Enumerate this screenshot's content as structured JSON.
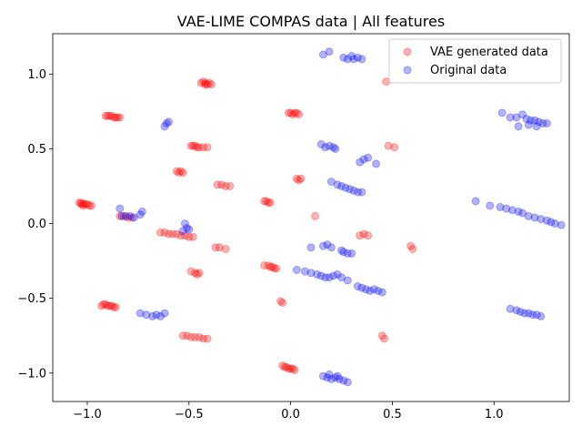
{
  "chart_data": {
    "type": "scatter",
    "title": "VAE-LIME COMPAS data | All features",
    "xlabel": "",
    "ylabel": "",
    "xlim": [
      -1.17,
      1.37
    ],
    "ylim": [
      -1.19,
      1.27
    ],
    "xticks": [
      -1.0,
      -0.5,
      0.0,
      0.5,
      1.0
    ],
    "xtick_labels": [
      "−1.0",
      "−0.5",
      "0.0",
      "0.5",
      "1.0"
    ],
    "yticks": [
      -1.0,
      -0.5,
      0.0,
      0.5,
      1.0
    ],
    "ytick_labels": [
      "−1.0",
      "−0.5",
      "0.0",
      "0.5",
      "1.0"
    ],
    "grid": false,
    "legend_position": "top-right",
    "series": [
      {
        "name": "VAE generated data",
        "color": "#ff0000",
        "alpha": 0.3,
        "x": [
          -0.42,
          -0.43,
          -0.41,
          -0.4,
          -0.44,
          -0.42,
          -0.39,
          -0.9,
          -0.88,
          -0.86,
          -0.85,
          -0.89,
          -0.87,
          -0.84,
          -0.91,
          -0.49,
          -0.47,
          -0.45,
          -0.43,
          -0.48,
          -0.46,
          -0.41,
          0.0,
          0.02,
          0.04,
          0.01,
          0.03,
          -0.01,
          0.48,
          0.51,
          -0.56,
          -0.54,
          -0.53,
          -0.55,
          0.03,
          0.05,
          0.04,
          -0.36,
          -0.34,
          -0.32,
          -0.3,
          -1.04,
          -1.03,
          -1.02,
          -1.01,
          -1.0,
          -1.02,
          -0.99,
          -0.98,
          -1.03,
          -0.84,
          -0.82,
          -0.8,
          -0.78,
          -0.13,
          -0.12,
          -0.11,
          -0.1,
          0.12,
          -0.64,
          -0.62,
          -0.6,
          -0.58,
          -0.56,
          -0.54,
          -0.52,
          -0.5,
          -0.48,
          0.34,
          0.36,
          0.38,
          -0.37,
          -0.35,
          -0.32,
          0.59,
          0.6,
          -0.13,
          -0.11,
          -0.1,
          -0.09,
          -0.08,
          -0.07,
          -0.49,
          -0.47,
          -0.46,
          -0.45,
          -0.05,
          -0.04,
          -0.92,
          -0.91,
          -0.9,
          -0.89,
          -0.88,
          -0.87,
          -0.86,
          -0.93,
          -0.53,
          -0.51,
          -0.49,
          -0.47,
          -0.45,
          -0.43,
          -0.41,
          0.45,
          0.46,
          -0.04,
          -0.03,
          -0.02,
          -0.01,
          0.0,
          0.01,
          0.02,
          0.47
        ],
        "y": [
          0.94,
          0.95,
          0.93,
          0.94,
          0.94,
          0.93,
          0.93,
          0.72,
          0.72,
          0.71,
          0.71,
          0.72,
          0.71,
          0.71,
          0.72,
          0.52,
          0.52,
          0.51,
          0.51,
          0.52,
          0.51,
          0.51,
          0.74,
          0.74,
          0.73,
          0.73,
          0.74,
          0.74,
          0.52,
          0.51,
          0.35,
          0.35,
          0.34,
          0.34,
          0.3,
          0.3,
          0.29,
          0.26,
          0.26,
          0.25,
          0.25,
          0.14,
          0.14,
          0.13,
          0.13,
          0.13,
          0.12,
          0.12,
          0.12,
          0.13,
          0.05,
          0.05,
          0.04,
          0.04,
          0.15,
          0.15,
          0.14,
          0.14,
          0.05,
          -0.06,
          -0.06,
          -0.07,
          -0.07,
          -0.07,
          -0.08,
          -0.08,
          -0.09,
          -0.09,
          -0.08,
          -0.07,
          -0.08,
          -0.16,
          -0.16,
          -0.17,
          -0.15,
          -0.17,
          -0.28,
          -0.28,
          -0.29,
          -0.29,
          -0.3,
          -0.3,
          -0.32,
          -0.33,
          -0.34,
          -0.33,
          -0.52,
          -0.53,
          -0.54,
          -0.54,
          -0.55,
          -0.55,
          -0.55,
          -0.56,
          -0.56,
          -0.55,
          -0.75,
          -0.75,
          -0.76,
          -0.76,
          -0.76,
          -0.77,
          -0.77,
          -0.75,
          -0.77,
          -0.95,
          -0.96,
          -0.96,
          -0.97,
          -0.97,
          -0.97,
          -0.98,
          0.95
        ]
      },
      {
        "name": "Original data",
        "color": "#0000ff",
        "alpha": 0.3,
        "x": [
          0.16,
          0.19,
          0.26,
          0.28,
          0.3,
          0.31,
          0.33,
          0.35,
          -0.61,
          -0.6,
          -0.62,
          1.04,
          1.08,
          1.11,
          1.14,
          1.16,
          1.18,
          1.2,
          1.22,
          1.24,
          1.26,
          1.12,
          1.17,
          1.21,
          0.15,
          0.17,
          0.19,
          0.21,
          0.22,
          0.34,
          0.36,
          0.38,
          0.42,
          0.2,
          0.23,
          0.25,
          0.27,
          0.29,
          0.31,
          0.33,
          0.35,
          -0.84,
          -0.83,
          -0.81,
          -0.79,
          -0.77,
          -0.74,
          -0.73,
          0.91,
          0.98,
          1.03,
          1.06,
          1.09,
          1.12,
          1.14,
          1.17,
          1.2,
          1.23,
          1.26,
          1.28,
          1.3,
          1.33,
          -0.52,
          -0.51,
          -0.53,
          -0.5,
          0.1,
          0.16,
          0.18,
          0.2,
          0.25,
          0.26,
          0.28,
          0.3,
          0.03,
          0.07,
          0.1,
          0.13,
          0.15,
          0.17,
          0.19,
          0.21,
          0.23,
          0.25,
          0.28,
          0.33,
          0.35,
          0.37,
          0.39,
          0.41,
          0.43,
          0.45,
          -0.74,
          -0.71,
          -0.68,
          -0.66,
          -0.64,
          -0.62,
          1.08,
          1.11,
          1.13,
          1.15,
          1.17,
          1.19,
          1.21,
          1.23,
          0.16,
          0.18,
          0.2,
          0.22,
          0.24,
          0.26,
          0.28,
          0.19,
          0.23
        ],
        "y": [
          1.13,
          1.15,
          1.11,
          1.1,
          1.12,
          1.1,
          1.11,
          1.1,
          0.67,
          0.68,
          0.65,
          0.74,
          0.71,
          0.71,
          0.73,
          0.7,
          0.69,
          0.69,
          0.68,
          0.67,
          0.67,
          0.65,
          0.66,
          0.65,
          0.53,
          0.51,
          0.52,
          0.51,
          0.5,
          0.41,
          0.43,
          0.44,
          0.4,
          0.28,
          0.26,
          0.25,
          0.24,
          0.23,
          0.22,
          0.21,
          0.21,
          0.1,
          0.05,
          0.05,
          0.05,
          0.04,
          0.06,
          0.08,
          0.15,
          0.12,
          0.11,
          0.1,
          0.09,
          0.08,
          0.07,
          0.05,
          0.04,
          0.03,
          0.02,
          0.01,
          0.0,
          -0.01,
          0.0,
          -0.03,
          -0.05,
          -0.04,
          -0.16,
          -0.15,
          -0.14,
          -0.16,
          -0.18,
          -0.19,
          -0.2,
          -0.2,
          -0.31,
          -0.32,
          -0.33,
          -0.34,
          -0.35,
          -0.36,
          -0.36,
          -0.35,
          -0.34,
          -0.36,
          -0.38,
          -0.42,
          -0.43,
          -0.44,
          -0.45,
          -0.44,
          -0.45,
          -0.46,
          -0.6,
          -0.61,
          -0.62,
          -0.61,
          -0.62,
          -0.6,
          -0.57,
          -0.58,
          -0.59,
          -0.6,
          -0.6,
          -0.61,
          -0.61,
          -0.62,
          -1.02,
          -1.03,
          -1.04,
          -1.03,
          -1.04,
          -1.05,
          -1.06,
          -1.01,
          -1.02
        ]
      }
    ]
  }
}
